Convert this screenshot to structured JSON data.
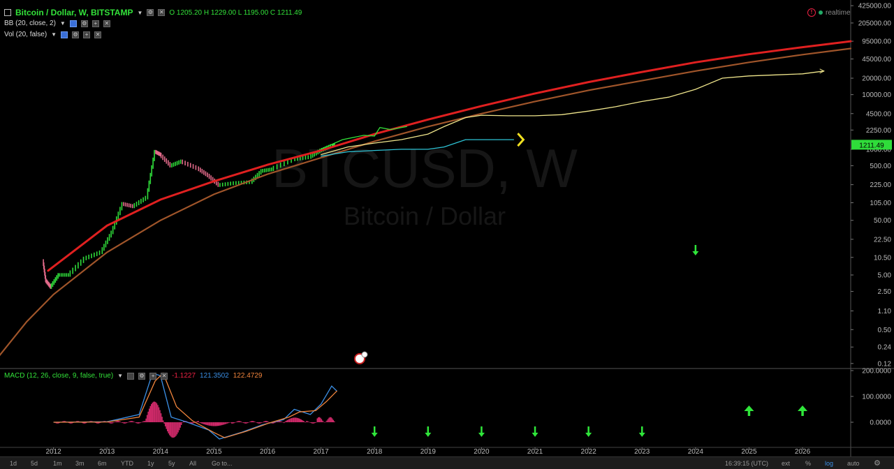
{
  "header": {
    "symbol_title": "Bitcoin / Dollar, W, BITSTAMP",
    "ohlc": "O 1205.20 H 1229.00 L 1195.00 C 1211.49",
    "indicator_bb": "BB (20, close, 2)",
    "indicator_vol": "Vol (20, false)",
    "realtime_label": "realtime"
  },
  "watermark": {
    "ticker": "BTCUSD, W",
    "name": "Bitcoin / Dollar"
  },
  "macd": {
    "title": "MACD (12, 26, close, 9, false, true)",
    "v1": "-1.1227",
    "v2": "121.3502",
    "v3": "122.4729",
    "ticks": [
      "200.0000",
      "100.0000",
      "0.0000"
    ]
  },
  "chart_data": {
    "type": "line",
    "title": "Bitcoin / Dollar, W, BITSTAMP",
    "y_scale": "log",
    "y_ticks": [
      "425000.00",
      "205000.00",
      "95000.00",
      "45000.00",
      "20000.00",
      "10000.00",
      "4500.00",
      "2250.00",
      "1000.00",
      "500.00",
      "225.00",
      "105.00",
      "50.00",
      "22.50",
      "10.50",
      "5.00",
      "2.50",
      "1.10",
      "0.50",
      "0.24",
      "0.12"
    ],
    "y_tick_values": [
      425000,
      205000,
      95000,
      45000,
      20000,
      10000,
      4500,
      2250,
      1000,
      500,
      225,
      105,
      50,
      22.5,
      10.5,
      5,
      2.5,
      1.1,
      0.5,
      0.24,
      0.12
    ],
    "x_ticks": [
      "2012",
      "2013",
      "2014",
      "2015",
      "2016",
      "2017",
      "2018",
      "2019",
      "2020",
      "2021",
      "2022",
      "2023",
      "2024",
      "2025",
      "2026"
    ],
    "xlim": [
      2011.0,
      2026.9
    ],
    "last_price_label": "1211.49",
    "series": [
      {
        "color": "#e02020",
        "x": [
          2011.9,
          2013,
          2014,
          2015,
          2016,
          2017,
          2018,
          2019,
          2020,
          2021,
          2022,
          2023,
          2024,
          2025,
          2026,
          2026.9
        ],
        "y": [
          6,
          40,
          120,
          260,
          520,
          950,
          1900,
          3500,
          6200,
          10500,
          17000,
          26000,
          39000,
          55000,
          74000,
          95000
        ]
      },
      {
        "color": "#a0552a",
        "x": [
          2010.95,
          2011.5,
          2012,
          2013,
          2014,
          2015,
          2016,
          2017,
          2018,
          2019,
          2020,
          2021,
          2022,
          2023,
          2024,
          2025,
          2026,
          2026.9
        ],
        "y": [
          0.15,
          0.7,
          2.2,
          13,
          50,
          150,
          350,
          700,
          1400,
          2600,
          4500,
          7500,
          12000,
          18000,
          27000,
          39000,
          54000,
          70000
        ]
      },
      {
        "color": "#f0e68c",
        "x": [
          2017.0,
          2017.5,
          2018.0,
          2018.5,
          2019.0,
          2019.3,
          2019.7,
          2020.0,
          2020.5,
          2021.0,
          2021.5,
          2022.0,
          2022.5,
          2023.0,
          2023.5,
          2024.0,
          2024.5,
          2025.0,
          2025.5,
          2026.0,
          2026.4
        ],
        "y": [
          800,
          1100,
          1300,
          1500,
          1900,
          2600,
          3800,
          4200,
          4100,
          4100,
          4300,
          5000,
          6000,
          7500,
          9000,
          12500,
          20000,
          22000,
          23000,
          24000,
          27000
        ]
      },
      {
        "color": "#2ec4d6",
        "x": [
          2017.0,
          2017.5,
          2018.0,
          2018.5,
          2019.0,
          2019.3,
          2019.7,
          2020.0,
          2020.6
        ],
        "y": [
          750,
          900,
          950,
          1000,
          1000,
          1100,
          1500,
          1500,
          1500
        ]
      },
      {
        "color": "#33e33a",
        "x": [
          2017.0,
          2017.4,
          2017.8,
          2018.0,
          2018.1,
          2018.3,
          2018.6
        ],
        "y": [
          1000,
          1500,
          1800,
          1750,
          2500,
          2300,
          2600
        ]
      }
    ],
    "macd_arrows": [
      {
        "x": 2018,
        "dir": "down"
      },
      {
        "x": 2019,
        "dir": "down"
      },
      {
        "x": 2020,
        "dir": "down"
      },
      {
        "x": 2021,
        "dir": "down"
      },
      {
        "x": 2022,
        "dir": "down"
      },
      {
        "x": 2023,
        "dir": "down"
      },
      {
        "x": 2025,
        "dir": "up"
      },
      {
        "x": 2026,
        "dir": "up"
      }
    ]
  },
  "bottombar": {
    "ranges": [
      "1d",
      "5d",
      "1m",
      "3m",
      "6m",
      "YTD",
      "1y",
      "5y",
      "All",
      "Go to..."
    ],
    "clock": "16:39:15 (UTC)",
    "ext": "ext",
    "pct": "%",
    "log": "log",
    "auto": "auto"
  }
}
